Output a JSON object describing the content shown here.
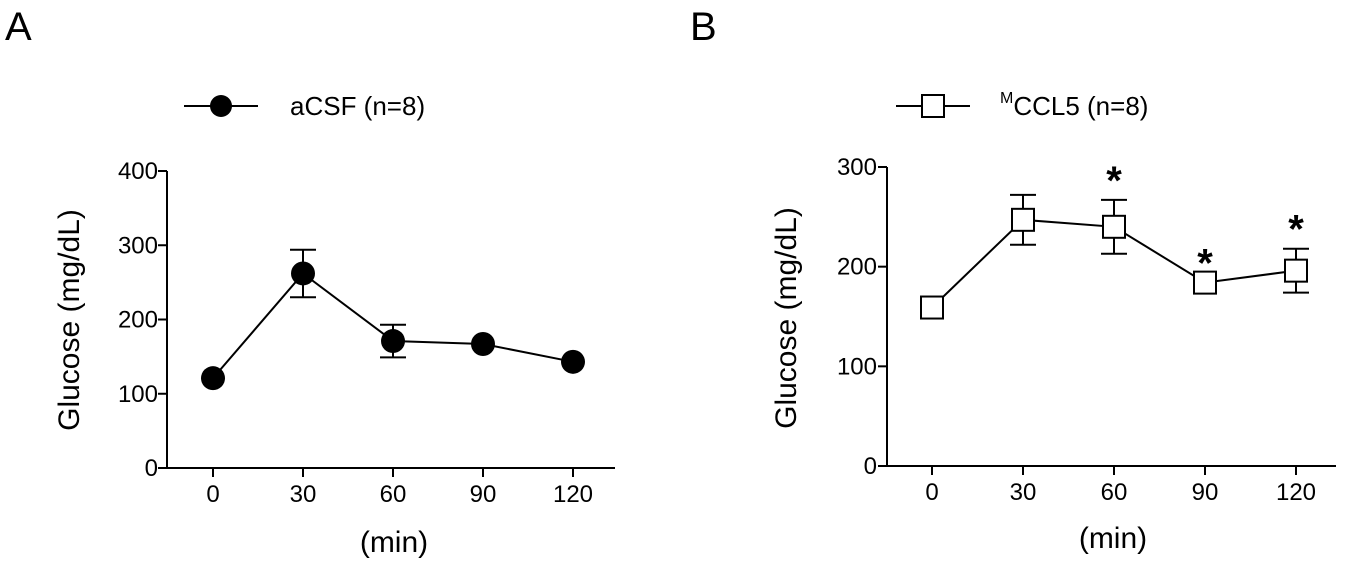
{
  "chart_data": [
    {
      "type": "line",
      "panel": "A",
      "categories": [
        "0",
        "30",
        "60",
        "90",
        "120"
      ],
      "x": [
        0,
        30,
        60,
        90,
        120
      ],
      "series": [
        {
          "name": "aCSF (n=8)",
          "marker": "filled-circle",
          "values": [
            121,
            262,
            171,
            167,
            143
          ],
          "err": [
            0,
            32,
            22,
            0,
            0
          ]
        }
      ],
      "xlabel": "(min)",
      "ylabel": "Glucose (mg/dL)",
      "ylim": [
        0,
        400
      ],
      "yticks": [
        0,
        100,
        200,
        300,
        400
      ],
      "grid": false,
      "legend": "top"
    },
    {
      "type": "line",
      "panel": "B",
      "categories": [
        "0",
        "30",
        "60",
        "90",
        "120"
      ],
      "x": [
        0,
        30,
        60,
        90,
        120
      ],
      "series": [
        {
          "name_sup": "M",
          "name_rest": "CCL5 (n=8)",
          "marker": "open-square",
          "values": [
            159,
            247,
            240,
            184,
            196
          ],
          "err": [
            0,
            25,
            27,
            0,
            22
          ],
          "significance": [
            "",
            "",
            "*",
            "*",
            "*"
          ]
        }
      ],
      "xlabel": "(min)",
      "ylabel": "Glucose (mg/dL)",
      "ylim": [
        0,
        300
      ],
      "yticks": [
        0,
        100,
        200,
        300
      ],
      "grid": false,
      "legend": "top"
    }
  ]
}
